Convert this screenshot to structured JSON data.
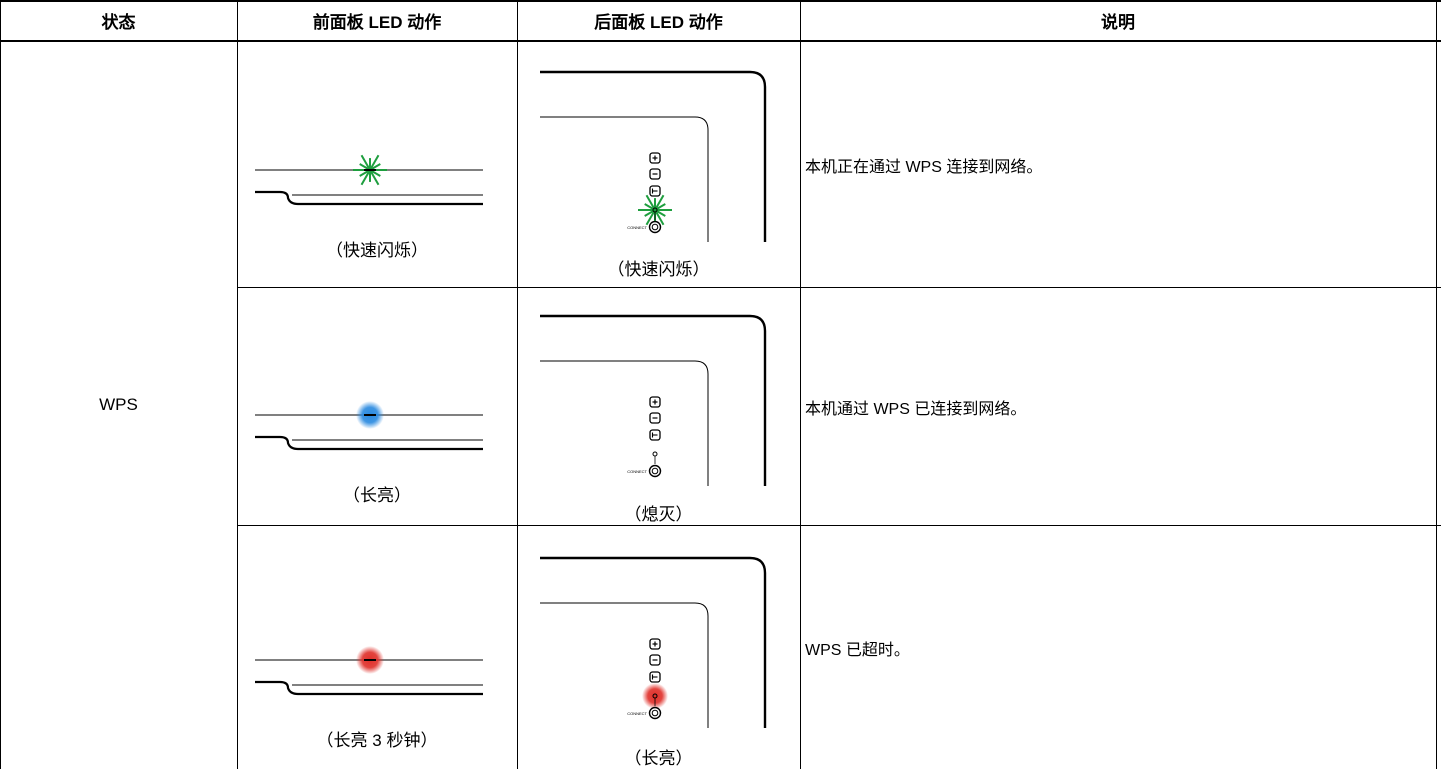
{
  "headers": {
    "state": "状态",
    "front": "前面板 LED 动作",
    "rear": "后面板 LED 动作",
    "desc": "说明"
  },
  "state_label": "WPS",
  "rows": [
    {
      "front_caption": "（快速闪烁）",
      "rear_caption": "（快速闪烁）",
      "description": "本机正在通过 WPS 连接到网络。",
      "front_led": {
        "color": "#1e9e3e",
        "style": "flashing"
      },
      "rear_led": {
        "color": "#1e9e3e",
        "style": "flashing"
      }
    },
    {
      "front_caption": "（长亮）",
      "rear_caption": "（熄灭）",
      "description": "本机通过 WPS 已连接到网络。",
      "front_led": {
        "color": "#2a8ae0",
        "style": "steady"
      },
      "rear_led": {
        "color": "none",
        "style": "off"
      }
    },
    {
      "front_caption": "（长亮 3 秒钟）",
      "rear_caption": "（长亮）",
      "description": "WPS 已超时。",
      "front_led": {
        "color": "#e0302a",
        "style": "steady"
      },
      "rear_led": {
        "color": "#e0302a",
        "style": "steady"
      }
    }
  ],
  "connect_label": "CONNECT"
}
